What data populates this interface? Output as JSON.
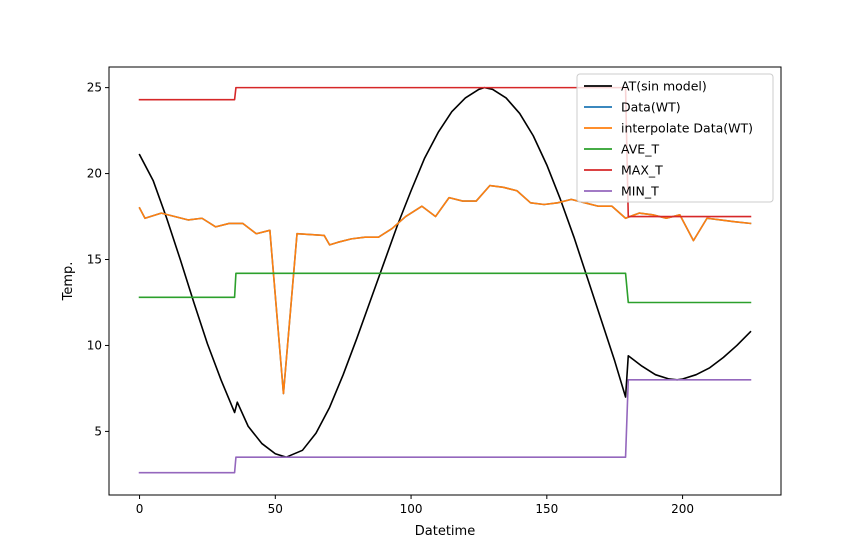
{
  "chart_data": {
    "type": "line",
    "xlabel": "Datetime",
    "ylabel": "Temp.",
    "xlim": [
      -11.25,
      236.25
    ],
    "ylim": [
      1.3,
      26.2
    ],
    "xticks": [
      0,
      50,
      100,
      150,
      200
    ],
    "yticks": [
      5,
      10,
      15,
      20,
      25
    ],
    "xtick_labels": [
      "0",
      "50",
      "100",
      "150",
      "200"
    ],
    "ytick_labels": [
      "5",
      "10",
      "15",
      "20",
      "25"
    ],
    "legend_position": "top-right",
    "grid": false,
    "series": [
      {
        "name": "AT(sin model)",
        "color": "#000000",
        "points": [
          [
            0,
            21.1
          ],
          [
            5,
            19.6
          ],
          [
            10,
            17.4
          ],
          [
            15,
            15.0
          ],
          [
            20,
            12.5
          ],
          [
            25,
            10.1
          ],
          [
            30,
            8.0
          ],
          [
            35,
            6.1
          ],
          [
            36,
            6.7
          ],
          [
            40,
            5.3
          ],
          [
            45,
            4.3
          ],
          [
            50,
            3.7
          ],
          [
            54,
            3.5
          ],
          [
            60,
            3.9
          ],
          [
            65,
            4.9
          ],
          [
            70,
            6.4
          ],
          [
            75,
            8.3
          ],
          [
            80,
            10.4
          ],
          [
            85,
            12.6
          ],
          [
            90,
            14.8
          ],
          [
            95,
            17.0
          ],
          [
            100,
            19.0
          ],
          [
            105,
            20.9
          ],
          [
            110,
            22.4
          ],
          [
            115,
            23.6
          ],
          [
            120,
            24.4
          ],
          [
            125,
            24.9
          ],
          [
            127,
            25.0
          ],
          [
            130,
            24.9
          ],
          [
            135,
            24.4
          ],
          [
            140,
            23.5
          ],
          [
            145,
            22.2
          ],
          [
            150,
            20.5
          ],
          [
            155,
            18.5
          ],
          [
            160,
            16.3
          ],
          [
            165,
            13.9
          ],
          [
            170,
            11.5
          ],
          [
            175,
            9.1
          ],
          [
            179,
            7.0
          ],
          [
            180,
            9.4
          ],
          [
            185,
            8.8
          ],
          [
            190,
            8.3
          ],
          [
            195,
            8.05
          ],
          [
            198,
            8.0
          ],
          [
            200,
            8.05
          ],
          [
            205,
            8.3
          ],
          [
            210,
            8.7
          ],
          [
            215,
            9.3
          ],
          [
            220,
            10.0
          ],
          [
            225,
            10.8
          ]
        ]
      },
      {
        "name": "Data(WT)",
        "color": "#1f77b4",
        "points": [
          [
            0,
            18.0
          ],
          [
            2,
            17.4
          ],
          [
            8,
            17.7
          ],
          [
            18,
            17.3
          ],
          [
            23,
            17.4
          ],
          [
            28,
            16.9
          ],
          [
            33,
            17.1
          ],
          [
            38,
            17.1
          ],
          [
            43,
            16.5
          ],
          [
            48,
            16.7
          ],
          [
            53,
            7.2
          ],
          [
            58,
            16.5
          ],
          [
            63,
            16.45
          ],
          [
            68,
            16.4
          ],
          [
            70,
            15.85
          ],
          [
            73,
            16.0
          ],
          [
            78,
            16.2
          ],
          [
            83,
            16.3
          ],
          [
            88,
            16.3
          ],
          [
            93,
            16.8
          ],
          [
            98,
            17.5
          ],
          [
            104,
            18.1
          ],
          [
            109,
            17.5
          ],
          [
            114,
            18.6
          ],
          [
            119,
            18.4
          ],
          [
            124,
            18.4
          ],
          [
            129,
            19.3
          ],
          [
            134,
            19.2
          ],
          [
            139,
            19.0
          ],
          [
            144,
            18.3
          ],
          [
            149,
            18.2
          ],
          [
            154,
            18.3
          ],
          [
            159,
            18.5
          ],
          [
            164,
            18.3
          ],
          [
            169,
            18.1
          ],
          [
            174,
            18.1
          ],
          [
            179,
            17.4
          ],
          [
            184,
            17.7
          ],
          [
            189,
            17.6
          ],
          [
            194,
            17.4
          ],
          [
            199,
            17.6
          ],
          [
            204,
            16.1
          ],
          [
            209,
            17.4
          ],
          [
            214,
            17.3
          ],
          [
            219,
            17.2
          ],
          [
            225,
            17.1
          ]
        ]
      },
      {
        "name": "interpolate Data(WT)",
        "color": "#ff7f0e",
        "points": [
          [
            0,
            18.0
          ],
          [
            2,
            17.4
          ],
          [
            8,
            17.7
          ],
          [
            18,
            17.3
          ],
          [
            23,
            17.4
          ],
          [
            28,
            16.9
          ],
          [
            33,
            17.1
          ],
          [
            38,
            17.1
          ],
          [
            43,
            16.5
          ],
          [
            48,
            16.7
          ],
          [
            53,
            7.2
          ],
          [
            58,
            16.5
          ],
          [
            63,
            16.45
          ],
          [
            68,
            16.4
          ],
          [
            70,
            15.85
          ],
          [
            73,
            16.0
          ],
          [
            78,
            16.2
          ],
          [
            83,
            16.3
          ],
          [
            88,
            16.3
          ],
          [
            93,
            16.8
          ],
          [
            98,
            17.5
          ],
          [
            104,
            18.1
          ],
          [
            109,
            17.5
          ],
          [
            114,
            18.6
          ],
          [
            119,
            18.4
          ],
          [
            124,
            18.4
          ],
          [
            129,
            19.3
          ],
          [
            134,
            19.2
          ],
          [
            139,
            19.0
          ],
          [
            144,
            18.3
          ],
          [
            149,
            18.2
          ],
          [
            154,
            18.3
          ],
          [
            159,
            18.5
          ],
          [
            164,
            18.3
          ],
          [
            169,
            18.1
          ],
          [
            174,
            18.1
          ],
          [
            179,
            17.4
          ],
          [
            184,
            17.7
          ],
          [
            189,
            17.6
          ],
          [
            194,
            17.4
          ],
          [
            199,
            17.6
          ],
          [
            204,
            16.1
          ],
          [
            209,
            17.4
          ],
          [
            214,
            17.3
          ],
          [
            219,
            17.2
          ],
          [
            225,
            17.1
          ]
        ]
      },
      {
        "name": "AVE_T",
        "color": "#2ca02c",
        "points": [
          [
            0,
            12.8
          ],
          [
            35,
            12.8
          ],
          [
            35.5,
            14.2
          ],
          [
            179,
            14.2
          ],
          [
            180,
            12.5
          ],
          [
            225,
            12.5
          ]
        ]
      },
      {
        "name": "MAX_T",
        "color": "#d62728",
        "points": [
          [
            0,
            24.3
          ],
          [
            35,
            24.3
          ],
          [
            35.5,
            25.0
          ],
          [
            179,
            25.0
          ],
          [
            180,
            17.5
          ],
          [
            225,
            17.5
          ]
        ]
      },
      {
        "name": "MIN_T",
        "color": "#9467bd",
        "points": [
          [
            0,
            2.6
          ],
          [
            35,
            2.6
          ],
          [
            35.5,
            3.5
          ],
          [
            179,
            3.5
          ],
          [
            180,
            8.0
          ],
          [
            225,
            8.0
          ]
        ]
      }
    ]
  }
}
